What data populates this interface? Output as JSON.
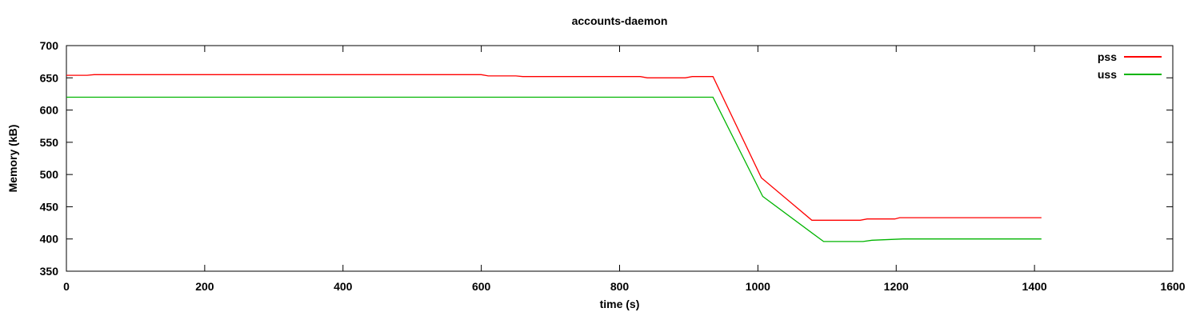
{
  "chart_data": {
    "type": "line",
    "title": "accounts-daemon",
    "xlabel": "time (s)",
    "ylabel": "Memory (kB)",
    "xlim": [
      0,
      1600
    ],
    "ylim": [
      350,
      700
    ],
    "xticks": [
      0,
      200,
      400,
      600,
      800,
      1000,
      1200,
      1400,
      1600
    ],
    "yticks": [
      350,
      400,
      450,
      500,
      550,
      600,
      650,
      700
    ],
    "grid": false,
    "legend_position": "top-right-inside",
    "border_color": "#000000",
    "background_color": "#ffffff",
    "series": [
      {
        "name": "pss",
        "color": "#ff0000",
        "points": [
          [
            0,
            654
          ],
          [
            30,
            654
          ],
          [
            40,
            655
          ],
          [
            600,
            655
          ],
          [
            610,
            653
          ],
          [
            650,
            653
          ],
          [
            660,
            652
          ],
          [
            830,
            652
          ],
          [
            840,
            650
          ],
          [
            895,
            650
          ],
          [
            905,
            652
          ],
          [
            935,
            652
          ],
          [
            1005,
            495
          ],
          [
            1078,
            429
          ],
          [
            1148,
            429
          ],
          [
            1158,
            431
          ],
          [
            1198,
            431
          ],
          [
            1205,
            433
          ],
          [
            1410,
            433
          ]
        ]
      },
      {
        "name": "uss",
        "color": "#00b400",
        "points": [
          [
            0,
            620
          ],
          [
            935,
            620
          ],
          [
            1007,
            466
          ],
          [
            1095,
            396
          ],
          [
            1152,
            396
          ],
          [
            1165,
            398
          ],
          [
            1210,
            400
          ],
          [
            1410,
            400
          ]
        ]
      }
    ]
  }
}
